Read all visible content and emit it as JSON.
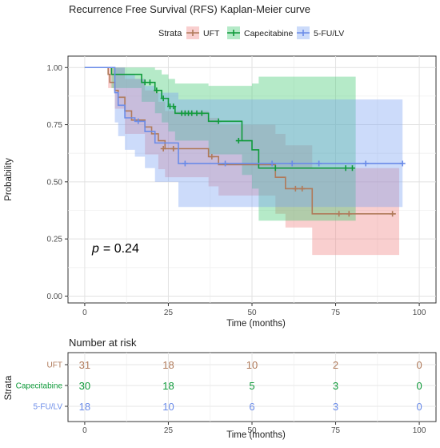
{
  "chart_data": [
    {
      "type": "line",
      "subtype": "kaplan-meier",
      "title": "Recurrence Free Survival (RFS) Kaplan-Meier curve",
      "xlabel": "Time (months)",
      "ylabel": "Probability",
      "xlim": [
        -5,
        105
      ],
      "ylim": [
        -0.03,
        1.05
      ],
      "xticks": [
        "0",
        "25",
        "50",
        "75",
        "100"
      ],
      "yticks": [
        "0.00",
        "0.25",
        "0.50",
        "0.75",
        "1.00"
      ],
      "grid": true,
      "legend": {
        "title": "Strata",
        "position": "top"
      },
      "annotation": {
        "p_label": "p",
        "p_value": "= 0.24"
      },
      "series": [
        {
          "name": "UFT",
          "color": "#b07a5a",
          "fill": "#f08080",
          "steps": [
            [
              0,
              1.0
            ],
            [
              7,
              0.97
            ],
            [
              7.5,
              0.935
            ],
            [
              9,
              0.9
            ],
            [
              10,
              0.87
            ],
            [
              12,
              0.81
            ],
            [
              14,
              0.77
            ],
            [
              18,
              0.74
            ],
            [
              20,
              0.71
            ],
            [
              22,
              0.68
            ],
            [
              24,
              0.645
            ],
            [
              37,
              0.61
            ],
            [
              40,
              0.575
            ],
            [
              57,
              0.52
            ],
            [
              60,
              0.47
            ],
            [
              68,
              0.36
            ],
            [
              93,
              0.36
            ]
          ],
          "lower": [
            [
              0,
              1.0
            ],
            [
              7,
              0.91
            ],
            [
              9,
              0.82
            ],
            [
              12,
              0.71
            ],
            [
              18,
              0.62
            ],
            [
              22,
              0.555
            ],
            [
              24,
              0.52
            ],
            [
              37,
              0.48
            ],
            [
              40,
              0.44
            ],
            [
              57,
              0.36
            ],
            [
              60,
              0.3
            ],
            [
              68,
              0.18
            ],
            [
              94,
              0.18
            ]
          ],
          "upper": [
            [
              0,
              1.0
            ],
            [
              7,
              1.0
            ],
            [
              9,
              1.0
            ],
            [
              12,
              0.95
            ],
            [
              18,
              0.9
            ],
            [
              22,
              0.85
            ],
            [
              24,
              0.81
            ],
            [
              37,
              0.78
            ],
            [
              40,
              0.75
            ],
            [
              57,
              0.71
            ],
            [
              60,
              0.66
            ],
            [
              68,
              0.56
            ],
            [
              94,
              0.56
            ]
          ],
          "censors": [
            [
              23.5,
              0.645
            ],
            [
              26.5,
              0.645
            ],
            [
              38,
              0.61
            ],
            [
              63,
              0.47
            ],
            [
              65,
              0.47
            ],
            [
              76,
              0.36
            ],
            [
              79,
              0.36
            ],
            [
              92,
              0.36
            ]
          ]
        },
        {
          "name": "Capecitabine",
          "color": "#0f9a3a",
          "fill": "#3cc86e",
          "steps": [
            [
              0,
              1.0
            ],
            [
              8,
              0.97
            ],
            [
              17,
              0.935
            ],
            [
              21,
              0.9
            ],
            [
              23,
              0.865
            ],
            [
              25,
              0.83
            ],
            [
              27,
              0.8
            ],
            [
              37,
              0.765
            ],
            [
              47,
              0.68
            ],
            [
              50,
              0.64
            ],
            [
              52,
              0.56
            ],
            [
              80,
              0.56
            ]
          ],
          "lower": [
            [
              0,
              1.0
            ],
            [
              8,
              0.91
            ],
            [
              17,
              0.85
            ],
            [
              21,
              0.8
            ],
            [
              23,
              0.76
            ],
            [
              25,
              0.72
            ],
            [
              27,
              0.68
            ],
            [
              37,
              0.62
            ],
            [
              47,
              0.53
            ],
            [
              50,
              0.47
            ],
            [
              52,
              0.33
            ],
            [
              81,
              0.33
            ]
          ],
          "upper": [
            [
              0,
              1.0
            ],
            [
              8,
              1.0
            ],
            [
              17,
              1.0
            ],
            [
              21,
              0.99
            ],
            [
              23,
              0.97
            ],
            [
              25,
              0.95
            ],
            [
              27,
              0.93
            ],
            [
              37,
              0.92
            ],
            [
              47,
              0.92
            ],
            [
              50,
              0.93
            ],
            [
              52,
              0.96
            ],
            [
              81,
              0.96
            ]
          ],
          "censors": [
            [
              18,
              0.935
            ],
            [
              19.5,
              0.935
            ],
            [
              21.5,
              0.9
            ],
            [
              23.5,
              0.865
            ],
            [
              25.5,
              0.83
            ],
            [
              26.5,
              0.83
            ],
            [
              29,
              0.8
            ],
            [
              30,
              0.8
            ],
            [
              31,
              0.8
            ],
            [
              32,
              0.8
            ],
            [
              33.5,
              0.8
            ],
            [
              35,
              0.8
            ],
            [
              40,
              0.765
            ],
            [
              46,
              0.68
            ],
            [
              57,
              0.56
            ],
            [
              78,
              0.56
            ],
            [
              80,
              0.56
            ]
          ]
        },
        {
          "name": "5-FU/LV",
          "color": "#6a8be8",
          "fill": "#7aa1f2",
          "steps": [
            [
              0,
              1.0
            ],
            [
              9,
              0.89
            ],
            [
              10,
              0.835
            ],
            [
              12,
              0.78
            ],
            [
              15,
              0.765
            ],
            [
              18,
              0.72
            ],
            [
              21,
              0.67
            ],
            [
              28,
              0.58
            ],
            [
              95,
              0.58
            ]
          ],
          "lower": [
            [
              0,
              1.0
            ],
            [
              9,
              0.76
            ],
            [
              10,
              0.7
            ],
            [
              12,
              0.64
            ],
            [
              15,
              0.61
            ],
            [
              18,
              0.56
            ],
            [
              21,
              0.5
            ],
            [
              28,
              0.39
            ],
            [
              95,
              0.39
            ]
          ],
          "upper": [
            [
              0,
              1.0
            ],
            [
              9,
              1.0
            ],
            [
              10,
              1.0
            ],
            [
              12,
              0.97
            ],
            [
              15,
              0.95
            ],
            [
              18,
              0.92
            ],
            [
              21,
              0.89
            ],
            [
              28,
              0.86
            ],
            [
              95,
              0.86
            ]
          ],
          "censors": [
            [
              16,
              0.765
            ],
            [
              30,
              0.58
            ],
            [
              42,
              0.58
            ],
            [
              56,
              0.58
            ],
            [
              62,
              0.58
            ],
            [
              70,
              0.58
            ],
            [
              84,
              0.58
            ],
            [
              95,
              0.58
            ]
          ]
        }
      ]
    },
    {
      "type": "table",
      "title": "Number at risk",
      "xlabel": "Time (months)",
      "ylabel": "Strata",
      "xticks": [
        "0",
        "25",
        "50",
        "75",
        "100"
      ],
      "columns": [
        0,
        25,
        50,
        75,
        100
      ],
      "rows": [
        {
          "name": "UFT",
          "color": "#b07a5a",
          "values": [
            "31",
            "18",
            "10",
            "2",
            "0"
          ]
        },
        {
          "name": "Capecitabine",
          "color": "#0f9a3a",
          "values": [
            "30",
            "18",
            "5",
            "3",
            "0"
          ]
        },
        {
          "name": "5-FU/LV",
          "color": "#6a8be8",
          "values": [
            "18",
            "10",
            "6",
            "3",
            "0"
          ]
        }
      ]
    }
  ]
}
